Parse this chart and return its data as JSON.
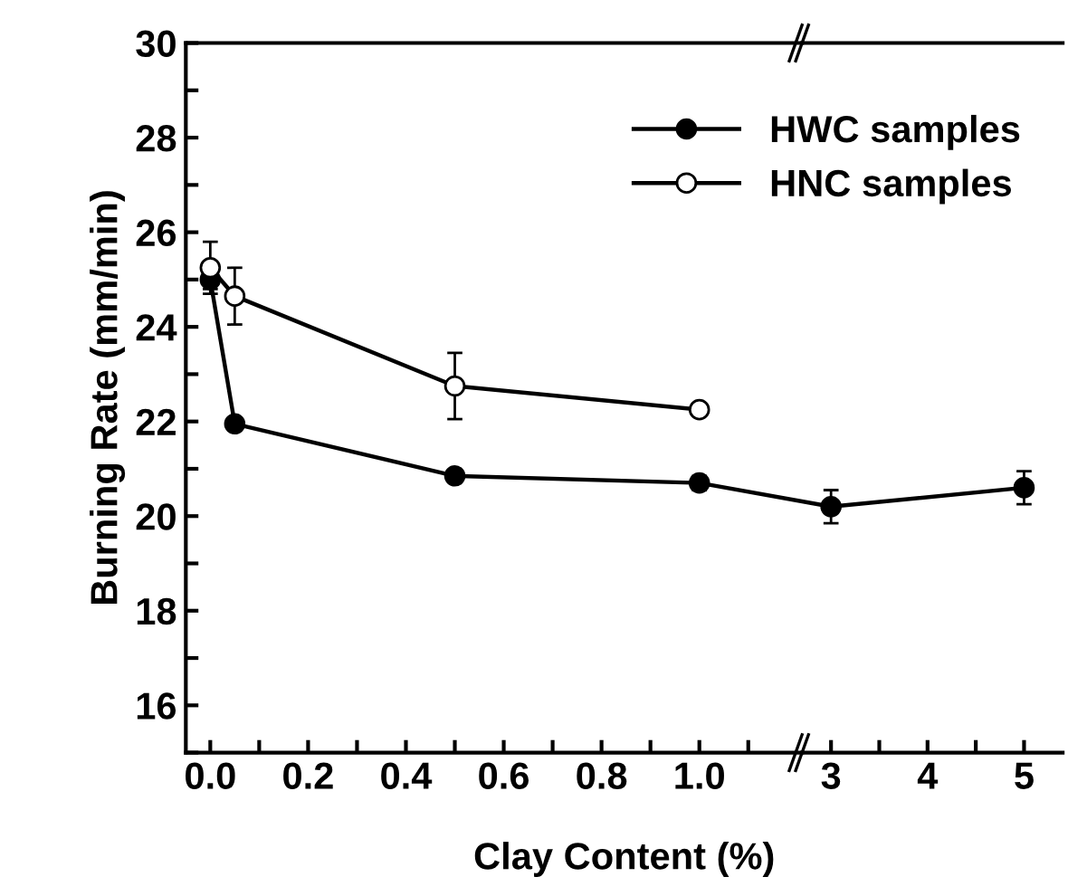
{
  "chart_data": [
    {
      "type": "line",
      "xlabel": "Clay Content (%)",
      "ylabel": "Burning Rate (mm/min)",
      "marker": "circle",
      "line_style": "solid",
      "grid": false,
      "legend": "top right",
      "xlim": [
        -0.05,
        1.21
      ],
      "ylim": [
        15,
        30
      ],
      "xticks": [
        {
          "value": 0,
          "label": "0.0"
        },
        {
          "value": 0.1,
          "label": null
        },
        {
          "value": 0.2,
          "label": "0.2"
        },
        {
          "value": 0.3,
          "label": null
        },
        {
          "value": 0.4,
          "label": "0.4"
        },
        {
          "value": 0.5,
          "label": null
        },
        {
          "value": 0.6,
          "label": "0.6"
        },
        {
          "value": 0.7,
          "label": null
        },
        {
          "value": 0.8,
          "label": "0.8"
        },
        {
          "value": 0.9,
          "label": null
        },
        {
          "value": 1.0,
          "label": "1.0"
        },
        {
          "value": 1.1,
          "label": null
        }
      ],
      "yticks": [
        {
          "value": 15,
          "label": null
        },
        16,
        {
          "value": 17,
          "label": null
        },
        18,
        {
          "value": 19,
          "label": null
        },
        20,
        {
          "value": 21,
          "label": null
        },
        22,
        {
          "value": 23,
          "label": null
        },
        24,
        {
          "value": 25,
          "label": null
        },
        26,
        {
          "value": 27,
          "label": null
        },
        28,
        {
          "value": 29,
          "label": null
        },
        30
      ],
      "series": [
        {
          "name": "HWC samples",
          "color": "#000000",
          "x": [
            0,
            0.05,
            0.5,
            1.0
          ],
          "values": [
            25.0,
            21.95,
            20.85,
            20.7
          ],
          "errors": [
            0.2,
            0.1,
            0.1,
            0.15
          ]
        },
        {
          "name": "HNC samples",
          "color": "#ffffff",
          "x": [
            0,
            0.05,
            0.5,
            1.0
          ],
          "values": [
            25.25,
            24.65,
            22.75,
            22.25
          ],
          "errors": [
            0.55,
            0.6,
            0.7,
            null
          ]
        }
      ]
    },
    {
      "type": "line",
      "marker": "circle",
      "line_style": "solid",
      "grid": false,
      "tick_labels": "x",
      "xlim": [
        2.7,
        5.4
      ],
      "ylim": [
        15,
        30
      ],
      "xticks": [
        3,
        {
          "value": 3.5,
          "label": null
        },
        4,
        {
          "value": 4.5,
          "label": null
        },
        5
      ],
      "series": [
        {
          "color": "#000000",
          "x": [
            3,
            5
          ],
          "values": [
            20.2,
            20.6
          ],
          "errors": [
            0.35,
            0.35
          ]
        }
      ]
    }
  ]
}
